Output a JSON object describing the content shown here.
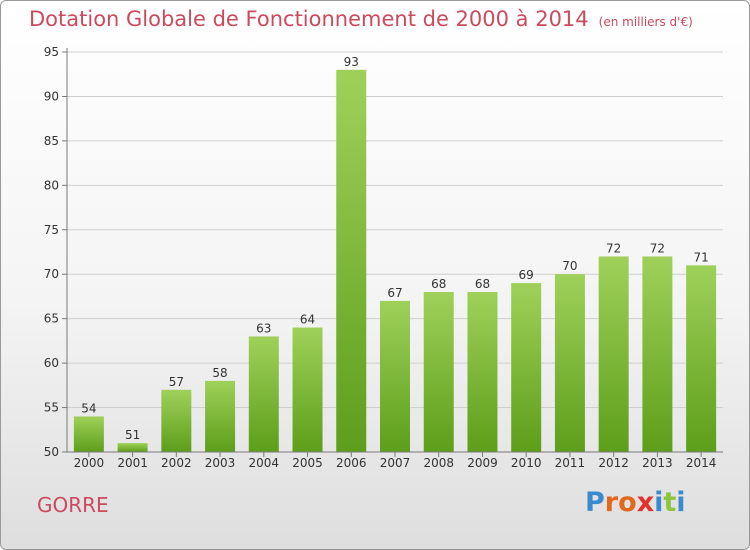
{
  "header": {
    "title": "Dotation Globale de Fonctionnement de 2000 à 2014",
    "subtitle": "(en milliers d'€)"
  },
  "footer": {
    "place": "GORRE",
    "brand_letters": [
      "P",
      "r",
      "o",
      "x",
      "i",
      "t",
      "i"
    ],
    "brand_colors": [
      "#3a8ad0",
      "#e2661c",
      "#e2661c",
      "#e5302b",
      "#3a8ad0",
      "#8cc63f",
      "#3a8ad0"
    ]
  },
  "colors": {
    "bar_top": "#9fd15a",
    "bar_bottom": "#5d9e1a",
    "grid": "#cfcfcf",
    "axis": "#7a7a7a",
    "text": "#333333"
  },
  "chart_data": {
    "type": "bar",
    "categories": [
      "2000",
      "2001",
      "2002",
      "2003",
      "2004",
      "2005",
      "2006",
      "2007",
      "2008",
      "2009",
      "2010",
      "2011",
      "2012",
      "2013",
      "2014"
    ],
    "values": [
      54,
      51,
      57,
      58,
      63,
      64,
      93,
      67,
      68,
      68,
      69,
      70,
      72,
      72,
      71
    ],
    "ylim": [
      50,
      95
    ],
    "yticks": [
      50,
      55,
      60,
      65,
      70,
      75,
      80,
      85,
      90,
      95
    ],
    "grid": true,
    "legend": "none",
    "data_labels": true
  }
}
